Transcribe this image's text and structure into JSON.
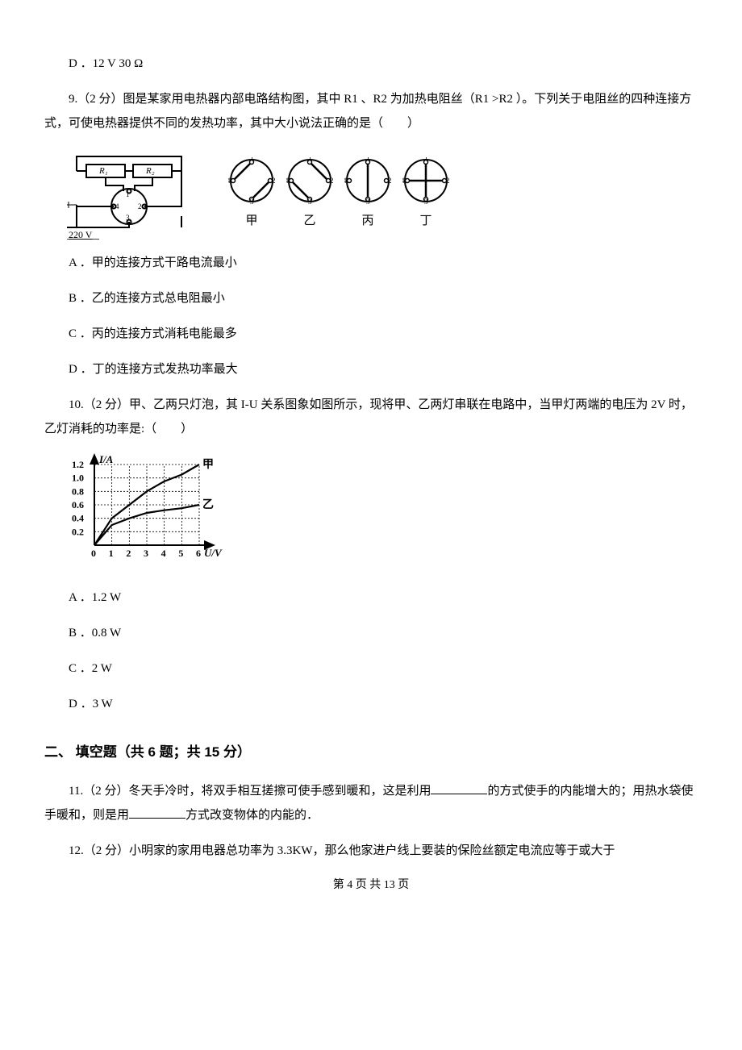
{
  "q8": {
    "optionD": "D ．12 V  30 Ω"
  },
  "q9": {
    "stem": "9.（2 分）图是某家用电热器内部电路结构图，其中 R1 、R2 为加热电阻丝（R1 >R2 ）。下列关于电阻丝的四种连接方式，可使电热器提供不同的发热功率，其中大小说法正确的是（　　）",
    "optionA": "A ．甲的连接方式干路电流最小",
    "optionB": "B ．乙的连接方式总电阻最小",
    "optionC": "C ．丙的连接方式消耗电能最多",
    "optionD": "D ．丁的连接方式发热功率最大",
    "circuit": {
      "R1": "R₁",
      "R2": "R₂",
      "voltage": "220 V",
      "terminals": [
        "1",
        "2",
        "3",
        "4"
      ]
    },
    "dials": [
      {
        "label": "甲",
        "connections": [
          [
            4,
            1
          ],
          [
            3,
            2
          ]
        ]
      },
      {
        "label": "乙",
        "connections": [
          [
            1,
            2
          ],
          [
            4,
            3
          ]
        ]
      },
      {
        "label": "丙",
        "connections": [
          [
            1,
            3
          ]
        ]
      },
      {
        "label": "丁",
        "connections": [
          [
            1,
            3
          ],
          [
            4,
            2
          ]
        ]
      }
    ]
  },
  "q10": {
    "stem": "10.（2 分）甲、乙两只灯泡，其 I-U 关系图象如图所示，现将甲、乙两灯串联在电路中，当甲灯两端的电压为 2V 时，乙灯消耗的功率是:（　　）",
    "optionA": "A ．1.2 W",
    "optionB": "B ．0.8 W",
    "optionC": "C ．2 W",
    "optionD": "D ．3 W",
    "graph": {
      "x_label": "U/V",
      "y_label": "I/A",
      "x_ticks": [
        0,
        1,
        2,
        3,
        4,
        5,
        6
      ],
      "y_ticks": [
        0.2,
        0.4,
        0.6,
        0.8,
        1.0,
        1.2
      ],
      "series": [
        {
          "name": "甲",
          "points": [
            [
              0,
              0
            ],
            [
              1,
              0.4
            ],
            [
              2,
              0.6
            ],
            [
              3,
              0.8
            ],
            [
              4,
              0.95
            ],
            [
              5,
              1.05
            ],
            [
              6,
              1.2
            ]
          ],
          "label_at": [
            6,
            1.2
          ]
        },
        {
          "name": "乙",
          "points": [
            [
              0,
              0
            ],
            [
              1,
              0.3
            ],
            [
              2,
              0.4
            ],
            [
              3,
              0.48
            ],
            [
              4,
              0.52
            ],
            [
              5,
              0.55
            ],
            [
              6,
              0.6
            ]
          ],
          "label_at": [
            6,
            0.6
          ]
        }
      ],
      "stroke": "#000000",
      "grid": "#000000"
    }
  },
  "section2": {
    "title": "二、 填空题（共 6 题；共 15 分）"
  },
  "q11": {
    "prefix": "11.（2 分）冬天手冷时，将双手相互搓擦可使手感到暖和，这是利用",
    "mid": "的方式使手的内能增大的；用热水袋使手暖和，则是用",
    "suffix": "方式改变物体的内能的．"
  },
  "q12": {
    "text": "12.（2 分）小明家的家用电器总功率为 3.3KW，那么他家进户线上要装的保险丝额定电流应等于或大于"
  },
  "footer": "第 4 页 共 13 页"
}
